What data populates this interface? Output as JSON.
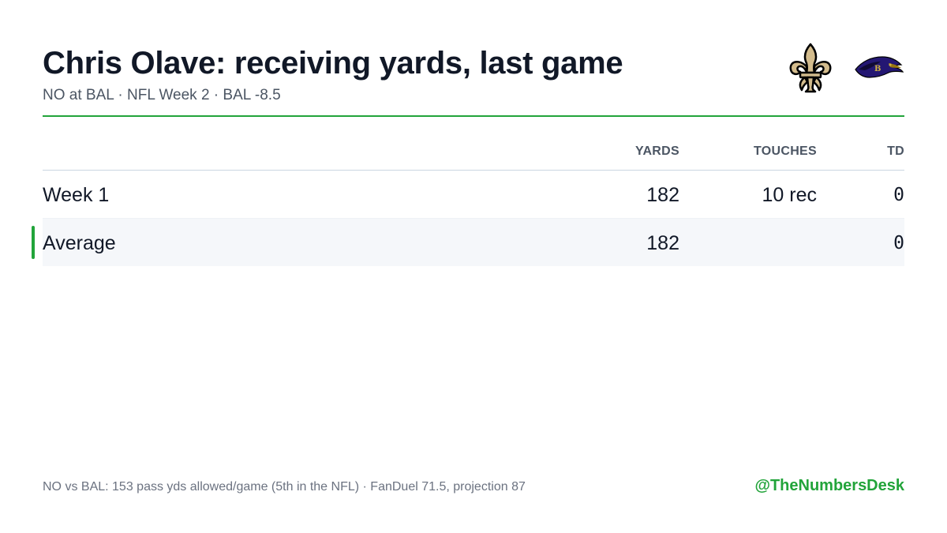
{
  "header": {
    "title": "Chris Olave: receiving yards, last game",
    "subtitle": "NO at BAL · NFL Week 2 · BAL -8.5",
    "logos": [
      {
        "icon": "saints-fleur-de-lis-logo-icon",
        "team": "NO"
      },
      {
        "icon": "ravens-logo-icon",
        "team": "BAL"
      }
    ]
  },
  "table": {
    "columns": {
      "yards": "YARDS",
      "touches": "TOUCHES",
      "td": "TD"
    },
    "rows": [
      {
        "label": "Week 1",
        "yards": "182",
        "touches": "10 rec",
        "td": "0"
      }
    ],
    "average": {
      "label": "Average",
      "yards": "182",
      "touches": "",
      "td": "0"
    }
  },
  "footer": {
    "note": "NO vs BAL: 153 pass yds allowed/game (5th in the NFL) · FanDuel 71.5, projection 87",
    "handle": "@TheNumbersDesk"
  },
  "colors": {
    "accent": "#22a43a",
    "saints_gold": "#d3bc8d",
    "ravens_purple": "#241773"
  }
}
